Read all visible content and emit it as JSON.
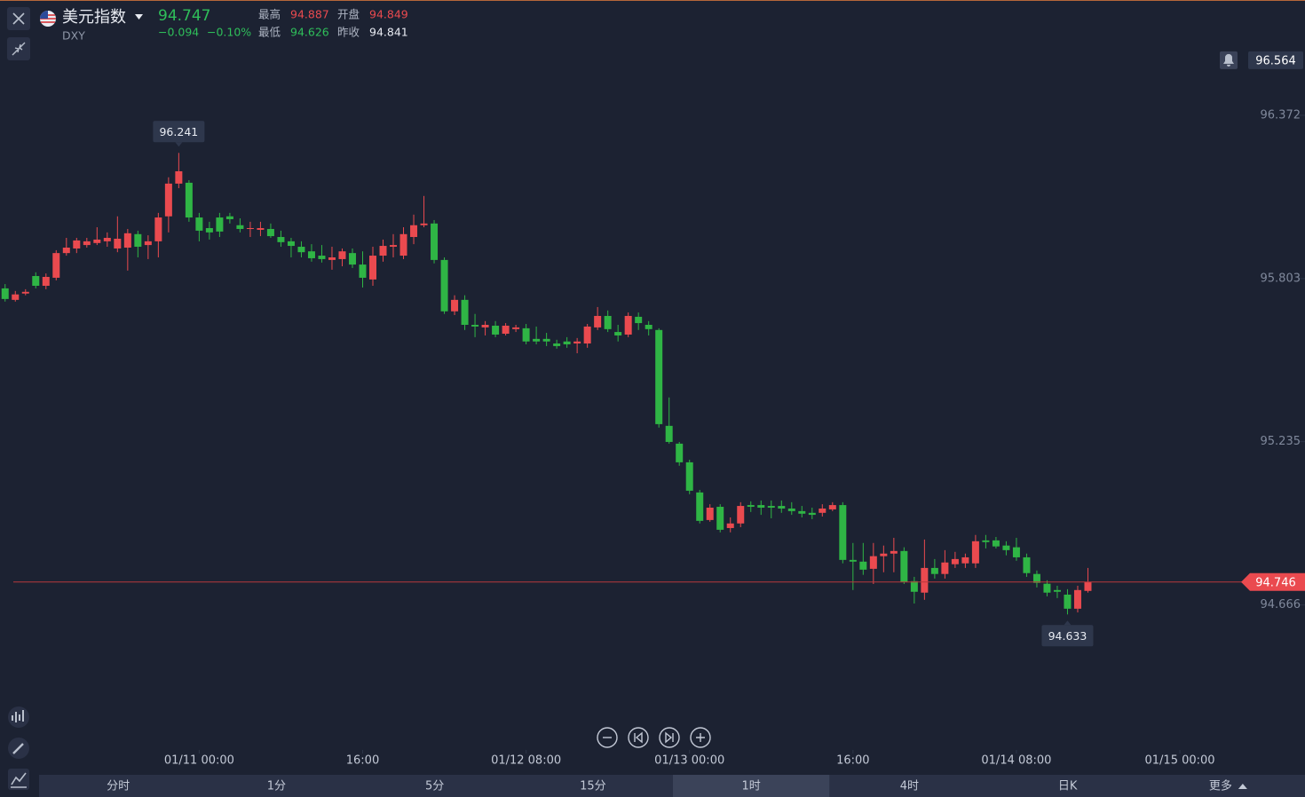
{
  "header": {
    "name": "美元指数",
    "symbol": "DXY",
    "price": "94.747",
    "change": "−0.094",
    "change_pct": "−0.10%",
    "stats": [
      {
        "label": "最高",
        "value": "94.887"
      },
      {
        "label": "开盘",
        "value": "94.849"
      },
      {
        "label": "最低",
        "value": "94.626"
      },
      {
        "label": "昨收",
        "value": "94.841"
      }
    ]
  },
  "chart_data": {
    "type": "candlestick",
    "x": [
      "01/10 05:00",
      "01/10 06:00",
      "01/10 07:00",
      "01/10 08:00",
      "01/10 09:00",
      "01/10 10:00",
      "01/10 11:00",
      "01/10 12:00",
      "01/10 13:00",
      "01/10 14:00",
      "01/10 15:00",
      "01/10 16:00",
      "01/10 17:00",
      "01/10 18:00",
      "01/10 19:00",
      "01/10 20:00",
      "01/10 21:00",
      "01/10 22:00",
      "01/10 23:00",
      "01/11 00:00",
      "01/11 01:00",
      "01/11 02:00",
      "01/11 03:00",
      "01/11 04:00",
      "01/11 05:00",
      "01/11 06:00",
      "01/11 07:00",
      "01/11 08:00",
      "01/11 09:00",
      "01/11 10:00",
      "01/11 11:00",
      "01/11 12:00",
      "01/11 13:00",
      "01/11 14:00",
      "01/11 15:00",
      "01/11 16:00",
      "01/11 17:00",
      "01/11 18:00",
      "01/11 19:00",
      "01/11 20:00",
      "01/11 21:00",
      "01/11 22:00",
      "01/11 23:00",
      "01/12 00:00",
      "01/12 01:00",
      "01/12 02:00",
      "01/12 03:00",
      "01/12 04:00",
      "01/12 05:00",
      "01/12 06:00",
      "01/12 07:00",
      "01/12 08:00",
      "01/12 09:00",
      "01/12 10:00",
      "01/12 11:00",
      "01/12 12:00",
      "01/12 13:00",
      "01/12 14:00",
      "01/12 15:00",
      "01/12 16:00",
      "01/12 17:00",
      "01/12 18:00",
      "01/12 19:00",
      "01/12 20:00",
      "01/12 21:00",
      "01/12 22:00",
      "01/12 23:00",
      "01/13 00:00",
      "01/13 01:00",
      "01/13 02:00",
      "01/13 03:00",
      "01/13 04:00",
      "01/13 05:00",
      "01/13 06:00",
      "01/13 07:00",
      "01/13 08:00",
      "01/13 09:00",
      "01/13 10:00",
      "01/13 11:00",
      "01/13 12:00",
      "01/13 13:00",
      "01/13 14:00",
      "01/13 15:00",
      "01/13 16:00",
      "01/13 17:00",
      "01/13 18:00",
      "01/13 19:00",
      "01/13 20:00",
      "01/13 21:00",
      "01/13 22:00",
      "01/13 23:00",
      "01/14 00:00",
      "01/14 01:00",
      "01/14 02:00",
      "01/14 03:00",
      "01/14 04:00",
      "01/14 05:00",
      "01/14 06:00",
      "01/14 07:00",
      "01/14 08:00",
      "01/14 09:00",
      "01/14 10:00",
      "01/14 11:00",
      "01/14 12:00",
      "01/14 13:00",
      "01/14 14:00",
      "01/14 15:00"
    ],
    "open": [
      95.769,
      95.729,
      95.751,
      95.812,
      95.778,
      95.806,
      95.892,
      95.908,
      95.92,
      95.927,
      95.933,
      95.908,
      95.911,
      95.958,
      95.92,
      95.933,
      96.02,
      96.134,
      96.137,
      96.016,
      95.979,
      96.016,
      96.02,
      95.989,
      95.976,
      95.973,
      95.976,
      95.948,
      95.933,
      95.914,
      95.898,
      95.883,
      95.868,
      95.871,
      95.892,
      95.852,
      95.8,
      95.883,
      95.914,
      95.883,
      95.948,
      95.989,
      95.995,
      95.868,
      95.689,
      95.729,
      95.642,
      95.633,
      95.639,
      95.611,
      95.627,
      95.63,
      95.593,
      95.593,
      95.577,
      95.584,
      95.577,
      95.577,
      95.633,
      95.673,
      95.617,
      95.608,
      95.67,
      95.642,
      95.624,
      95.29,
      95.228,
      95.163,
      95.058,
      94.962,
      95.008,
      94.934,
      94.95,
      95.014,
      95.014,
      95.011,
      95.011,
      95.002,
      94.993,
      94.987,
      94.987,
      94.999,
      95.014,
      94.823,
      94.817,
      94.792,
      94.836,
      94.845,
      94.854,
      94.749,
      94.709,
      94.795,
      94.774,
      94.808,
      94.811,
      94.811,
      94.891,
      94.891,
      94.873,
      94.867,
      94.832,
      94.774,
      94.74,
      94.718,
      94.702,
      94.653,
      94.715
    ],
    "high": [
      95.784,
      95.76,
      95.766,
      95.825,
      95.821,
      95.902,
      95.945,
      95.945,
      95.945,
      95.982,
      95.964,
      96.02,
      95.976,
      95.97,
      95.954,
      96.032,
      96.156,
      96.241,
      96.146,
      96.032,
      96.001,
      96.032,
      96.032,
      96.013,
      96.001,
      96.001,
      95.995,
      95.97,
      95.945,
      95.933,
      95.923,
      95.92,
      95.914,
      95.908,
      95.908,
      95.898,
      95.914,
      95.939,
      95.958,
      95.982,
      96.026,
      96.091,
      96.007,
      95.877,
      95.745,
      95.745,
      95.68,
      95.655,
      95.655,
      95.648,
      95.642,
      95.645,
      95.636,
      95.614,
      95.59,
      95.599,
      95.596,
      95.645,
      95.704,
      95.692,
      95.642,
      95.685,
      95.685,
      95.655,
      95.63,
      95.389,
      95.234,
      95.172,
      95.067,
      95.017,
      95.017,
      94.971,
      95.024,
      95.027,
      95.03,
      95.03,
      95.03,
      95.024,
      95.011,
      95.005,
      95.017,
      95.024,
      95.024,
      94.882,
      94.882,
      94.882,
      94.873,
      94.9,
      94.867,
      94.764,
      94.894,
      94.826,
      94.857,
      94.851,
      94.845,
      94.91,
      94.91,
      94.903,
      94.888,
      94.9,
      94.845,
      94.786,
      94.752,
      94.733,
      94.721,
      94.733,
      94.795
    ],
    "low": [
      95.723,
      95.723,
      95.745,
      95.769,
      95.766,
      95.797,
      95.883,
      95.892,
      95.911,
      95.92,
      95.914,
      95.895,
      95.831,
      95.877,
      95.871,
      95.877,
      95.964,
      96.118,
      96.001,
      95.933,
      95.939,
      95.948,
      95.995,
      95.964,
      95.948,
      95.951,
      95.945,
      95.914,
      95.877,
      95.877,
      95.862,
      95.859,
      95.834,
      95.846,
      95.84,
      95.772,
      95.778,
      95.862,
      95.877,
      95.871,
      95.923,
      95.982,
      95.856,
      95.68,
      95.676,
      95.624,
      95.599,
      95.605,
      95.599,
      95.605,
      95.617,
      95.574,
      95.574,
      95.568,
      95.559,
      95.562,
      95.543,
      95.562,
      95.624,
      95.617,
      95.584,
      95.599,
      95.624,
      95.605,
      95.284,
      95.228,
      95.151,
      95.052,
      94.95,
      94.956,
      94.919,
      94.919,
      94.937,
      94.99,
      94.98,
      94.968,
      94.987,
      94.98,
      94.971,
      94.965,
      94.974,
      94.993,
      94.811,
      94.718,
      94.771,
      94.739,
      94.78,
      94.78,
      94.739,
      94.671,
      94.684,
      94.758,
      94.758,
      94.795,
      94.795,
      94.795,
      94.863,
      94.863,
      94.839,
      94.82,
      94.764,
      94.727,
      94.696,
      94.69,
      94.633,
      94.64,
      94.709
    ],
    "close": [
      95.732,
      95.748,
      95.757,
      95.778,
      95.809,
      95.892,
      95.911,
      95.936,
      95.933,
      95.939,
      95.945,
      95.942,
      95.961,
      95.914,
      95.933,
      96.016,
      96.134,
      96.177,
      96.016,
      95.97,
      95.964,
      95.967,
      96.01,
      95.976,
      95.979,
      95.979,
      95.951,
      95.93,
      95.917,
      95.895,
      95.874,
      95.871,
      95.877,
      95.898,
      95.852,
      95.806,
      95.883,
      95.917,
      95.92,
      95.958,
      95.989,
      95.995,
      95.868,
      95.689,
      95.729,
      95.642,
      95.636,
      95.642,
      95.608,
      95.639,
      95.633,
      95.584,
      95.584,
      95.584,
      95.568,
      95.574,
      95.584,
      95.636,
      95.673,
      95.627,
      95.605,
      95.673,
      95.648,
      95.627,
      95.296,
      95.234,
      95.163,
      95.064,
      94.959,
      95.005,
      94.928,
      94.95,
      95.011,
      95.008,
      95.005,
      95.005,
      95.002,
      94.993,
      94.984,
      94.98,
      95.002,
      95.014,
      94.823,
      94.817,
      94.789,
      94.836,
      94.845,
      94.854,
      94.746,
      94.712,
      94.795,
      94.774,
      94.814,
      94.826,
      94.832,
      94.888,
      94.885,
      94.87,
      94.857,
      94.832,
      94.777,
      94.743,
      94.709,
      94.712,
      94.653,
      94.718,
      94.746
    ],
    "up_color": "#ea4a4f",
    "down_color": "#2fb545",
    "xlim": [
      "01/10 04:30",
      "01/15 12:15"
    ],
    "xticks": [
      "01/11 00:00",
      {
        "value": "01/11 16:00",
        "label": "16:00"
      },
      "01/12 08:00",
      "01/13 00:00",
      {
        "value": "01/13 16:00",
        "label": "16:00"
      },
      "01/14 08:00",
      "01/15 00:00"
    ],
    "ylim": [
      94.3,
      96.65
    ],
    "yticks": [
      96.372,
      95.803,
      95.235,
      94.666
    ],
    "alert_price": 96.564
  },
  "toolbar": {
    "tabs": [
      "分时",
      "1分",
      "5分",
      "15分",
      "1时",
      "4时",
      "日K",
      "更多"
    ]
  }
}
